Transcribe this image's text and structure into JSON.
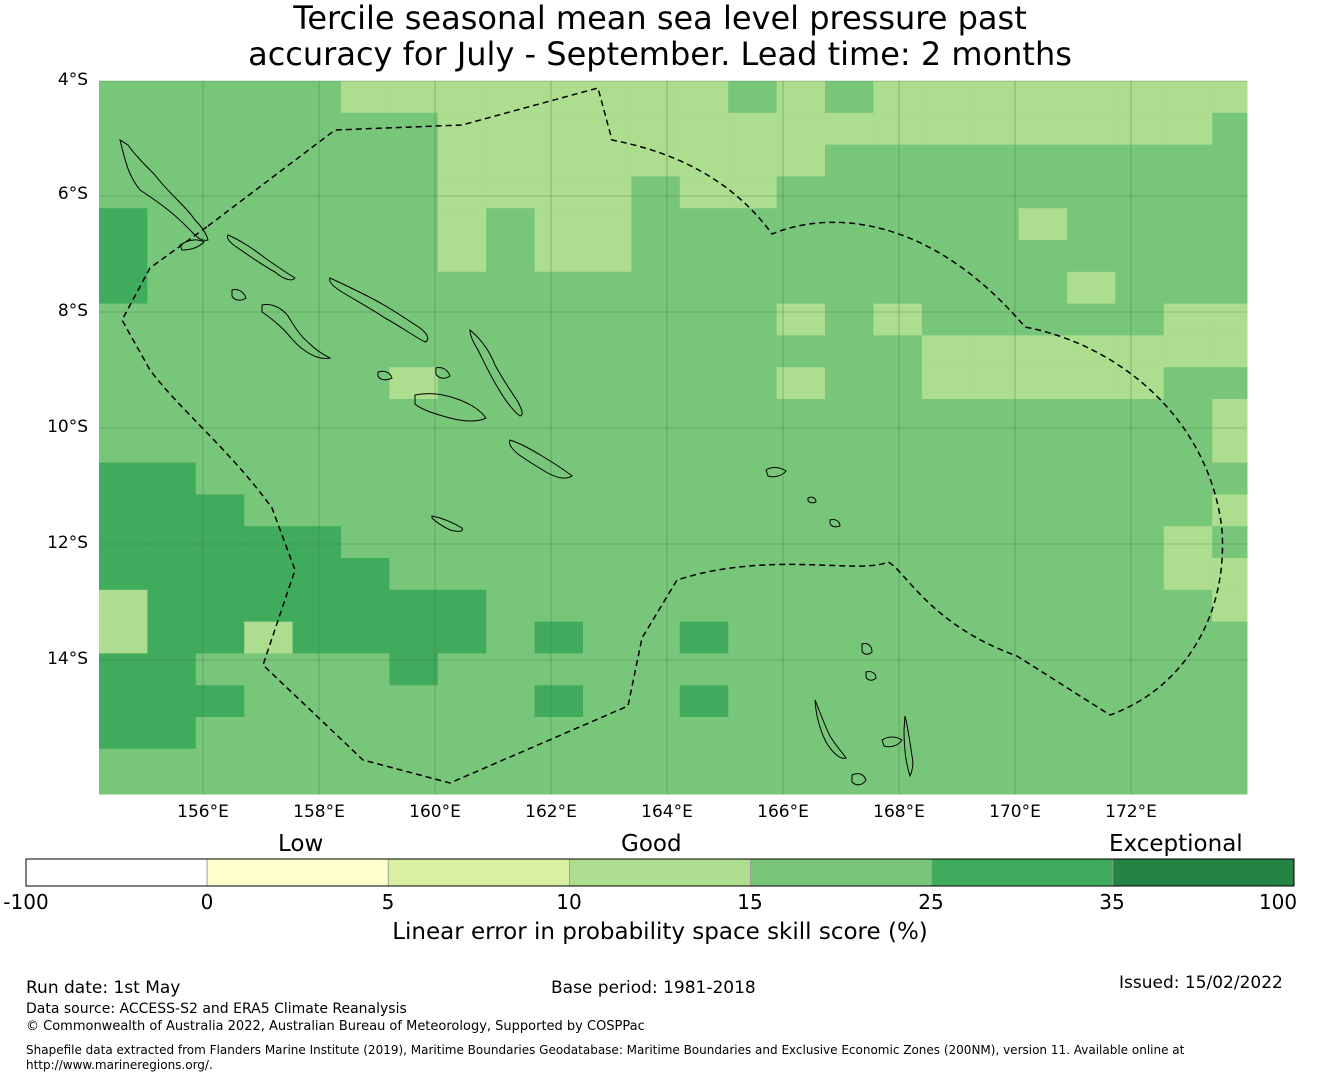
{
  "title": {
    "line1": "Tercile seasonal mean sea level pressure past",
    "line2": "accuracy for July - September. Lead time: 2 months"
  },
  "map": {
    "lat_labels": [
      "4°S",
      "6°S",
      "8°S",
      "10°S",
      "12°S",
      "14°S"
    ],
    "lon_labels": [
      "156°E",
      "158°E",
      "160°E",
      "162°E",
      "164°E",
      "166°E",
      "168°E",
      "170°E",
      "172°E"
    ],
    "extent": {
      "lon_min": 154.2,
      "lon_max": 174.0,
      "lat_north": -4.0,
      "lat_south": -16.3
    },
    "boundary_style": "dashed",
    "gridlines": true
  },
  "colorbar": {
    "categories": [
      "Low",
      "Good",
      "Exceptional"
    ],
    "ticks": [
      "-100",
      "0",
      "5",
      "10",
      "15",
      "25",
      "35",
      "100"
    ],
    "colors": [
      "#ffffff",
      "#ffffcc",
      "#d9f0a3",
      "#addd8e",
      "#78c679",
      "#41ab5d",
      "#238443"
    ],
    "label": "Linear error in probability space skill score (%)"
  },
  "footer": {
    "run_date": "Run date: 1st May",
    "base_period": "Base period: 1981-2018",
    "issued": "Issued: 15/02/2022",
    "data_source": "Data source: ACCESS-S2 and ERA5 Climate Reanalysis",
    "copyright": "© Commonwealth of Australia 2022, Australian Bureau of Meteorology, Supported by COSPPac",
    "shapefile_line1": "Shapefile data extracted from Flanders Marine Institute (2019), Maritime Boundaries Geodatabase: Maritime Boundaries and Exclusive Economic Zones (200NM), version 11. Available online at",
    "shapefile_line2": "http://www.marineregions.org/."
  }
}
